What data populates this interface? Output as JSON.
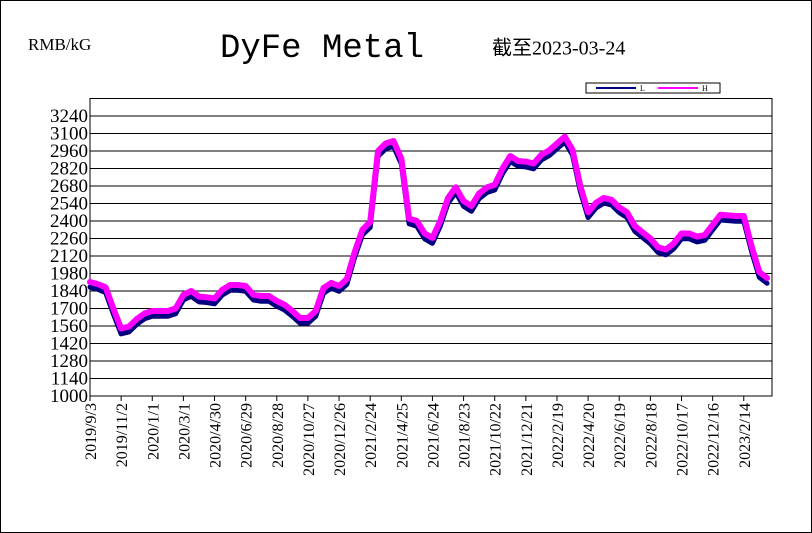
{
  "chart_data": {
    "type": "line",
    "title": "DyFe Metal",
    "y_unit": "RMB/kG",
    "subtitle": "截至2023-03-24",
    "categories": [
      "2019/9/3",
      null,
      null,
      null,
      "2019/11/2",
      null,
      null,
      null,
      "2020/1/1",
      null,
      null,
      null,
      "2020/3/1",
      null,
      null,
      null,
      "2020/4/30",
      null,
      null,
      null,
      "2020/6/29",
      null,
      null,
      null,
      "2020/8/28",
      null,
      null,
      null,
      "2020/10/27",
      null,
      null,
      null,
      "2020/12/26",
      null,
      null,
      null,
      "2021/2/24",
      null,
      null,
      null,
      "2021/4/25",
      null,
      null,
      null,
      "2021/6/24",
      null,
      null,
      null,
      "2021/8/23",
      null,
      null,
      null,
      "2021/10/22",
      null,
      null,
      null,
      "2021/12/21",
      null,
      null,
      null,
      "2022/2/19",
      null,
      null,
      null,
      "2022/4/20",
      null,
      null,
      null,
      "2022/6/19",
      null,
      null,
      null,
      "2022/8/18",
      null,
      null,
      null,
      "2022/10/17",
      null,
      null,
      null,
      "2022/12/16",
      null,
      null,
      null,
      "2023/2/14",
      null,
      null,
      null
    ],
    "series": [
      {
        "name": "L",
        "color": "#000080",
        "values": [
          1895,
          1878,
          1852,
          1682,
          1522,
          1537,
          1597,
          1642,
          1662,
          1662,
          1662,
          1682,
          1792,
          1822,
          1777,
          1772,
          1762,
          1832,
          1870,
          1870,
          1862,
          1792,
          1782,
          1782,
          1742,
          1712,
          1662,
          1606,
          1606,
          1662,
          1846,
          1887,
          1862,
          1917,
          2132,
          2312,
          2374,
          2942,
          3002,
          3022,
          2882,
          2402,
          2382,
          2282,
          2246,
          2382,
          2566,
          2652,
          2542,
          2502,
          2602,
          2652,
          2672,
          2802,
          2902,
          2862,
          2857,
          2842,
          2912,
          2947,
          3002,
          3057,
          2952,
          2662,
          2452,
          2527,
          2567,
          2552,
          2492,
          2452,
          2342,
          2292,
          2242,
          2172,
          2154,
          2202,
          2282,
          2282,
          2257,
          2270,
          2352,
          2432,
          2427,
          2422,
          2422,
          2182,
          1974,
          1926
        ]
      },
      {
        "name": "H",
        "color": "#ff00ff",
        "values": [
          1912,
          1895,
          1870,
          1700,
          1540,
          1555,
          1615,
          1660,
          1680,
          1680,
          1680,
          1700,
          1810,
          1840,
          1795,
          1790,
          1780,
          1850,
          1888,
          1888,
          1880,
          1810,
          1800,
          1800,
          1760,
          1730,
          1680,
          1624,
          1624,
          1680,
          1864,
          1905,
          1880,
          1935,
          2150,
          2330,
          2392,
          2960,
          3020,
          3040,
          2900,
          2420,
          2400,
          2300,
          2264,
          2400,
          2584,
          2670,
          2560,
          2520,
          2620,
          2670,
          2690,
          2820,
          2920,
          2880,
          2875,
          2860,
          2930,
          2965,
          3020,
          3075,
          2970,
          2680,
          2470,
          2545,
          2585,
          2570,
          2510,
          2470,
          2360,
          2310,
          2260,
          2190,
          2172,
          2220,
          2300,
          2300,
          2275,
          2288,
          2370,
          2450,
          2445,
          2440,
          2440,
          2200,
          1992,
          1944
        ]
      }
    ],
    "ylim": [
      1000,
      3380
    ],
    "yticks": [
      1000,
      1140,
      1280,
      1420,
      1560,
      1700,
      1840,
      1980,
      2120,
      2260,
      2400,
      2540,
      2680,
      2820,
      2960,
      3100,
      3240
    ],
    "grid": true,
    "legend": "top-right"
  }
}
